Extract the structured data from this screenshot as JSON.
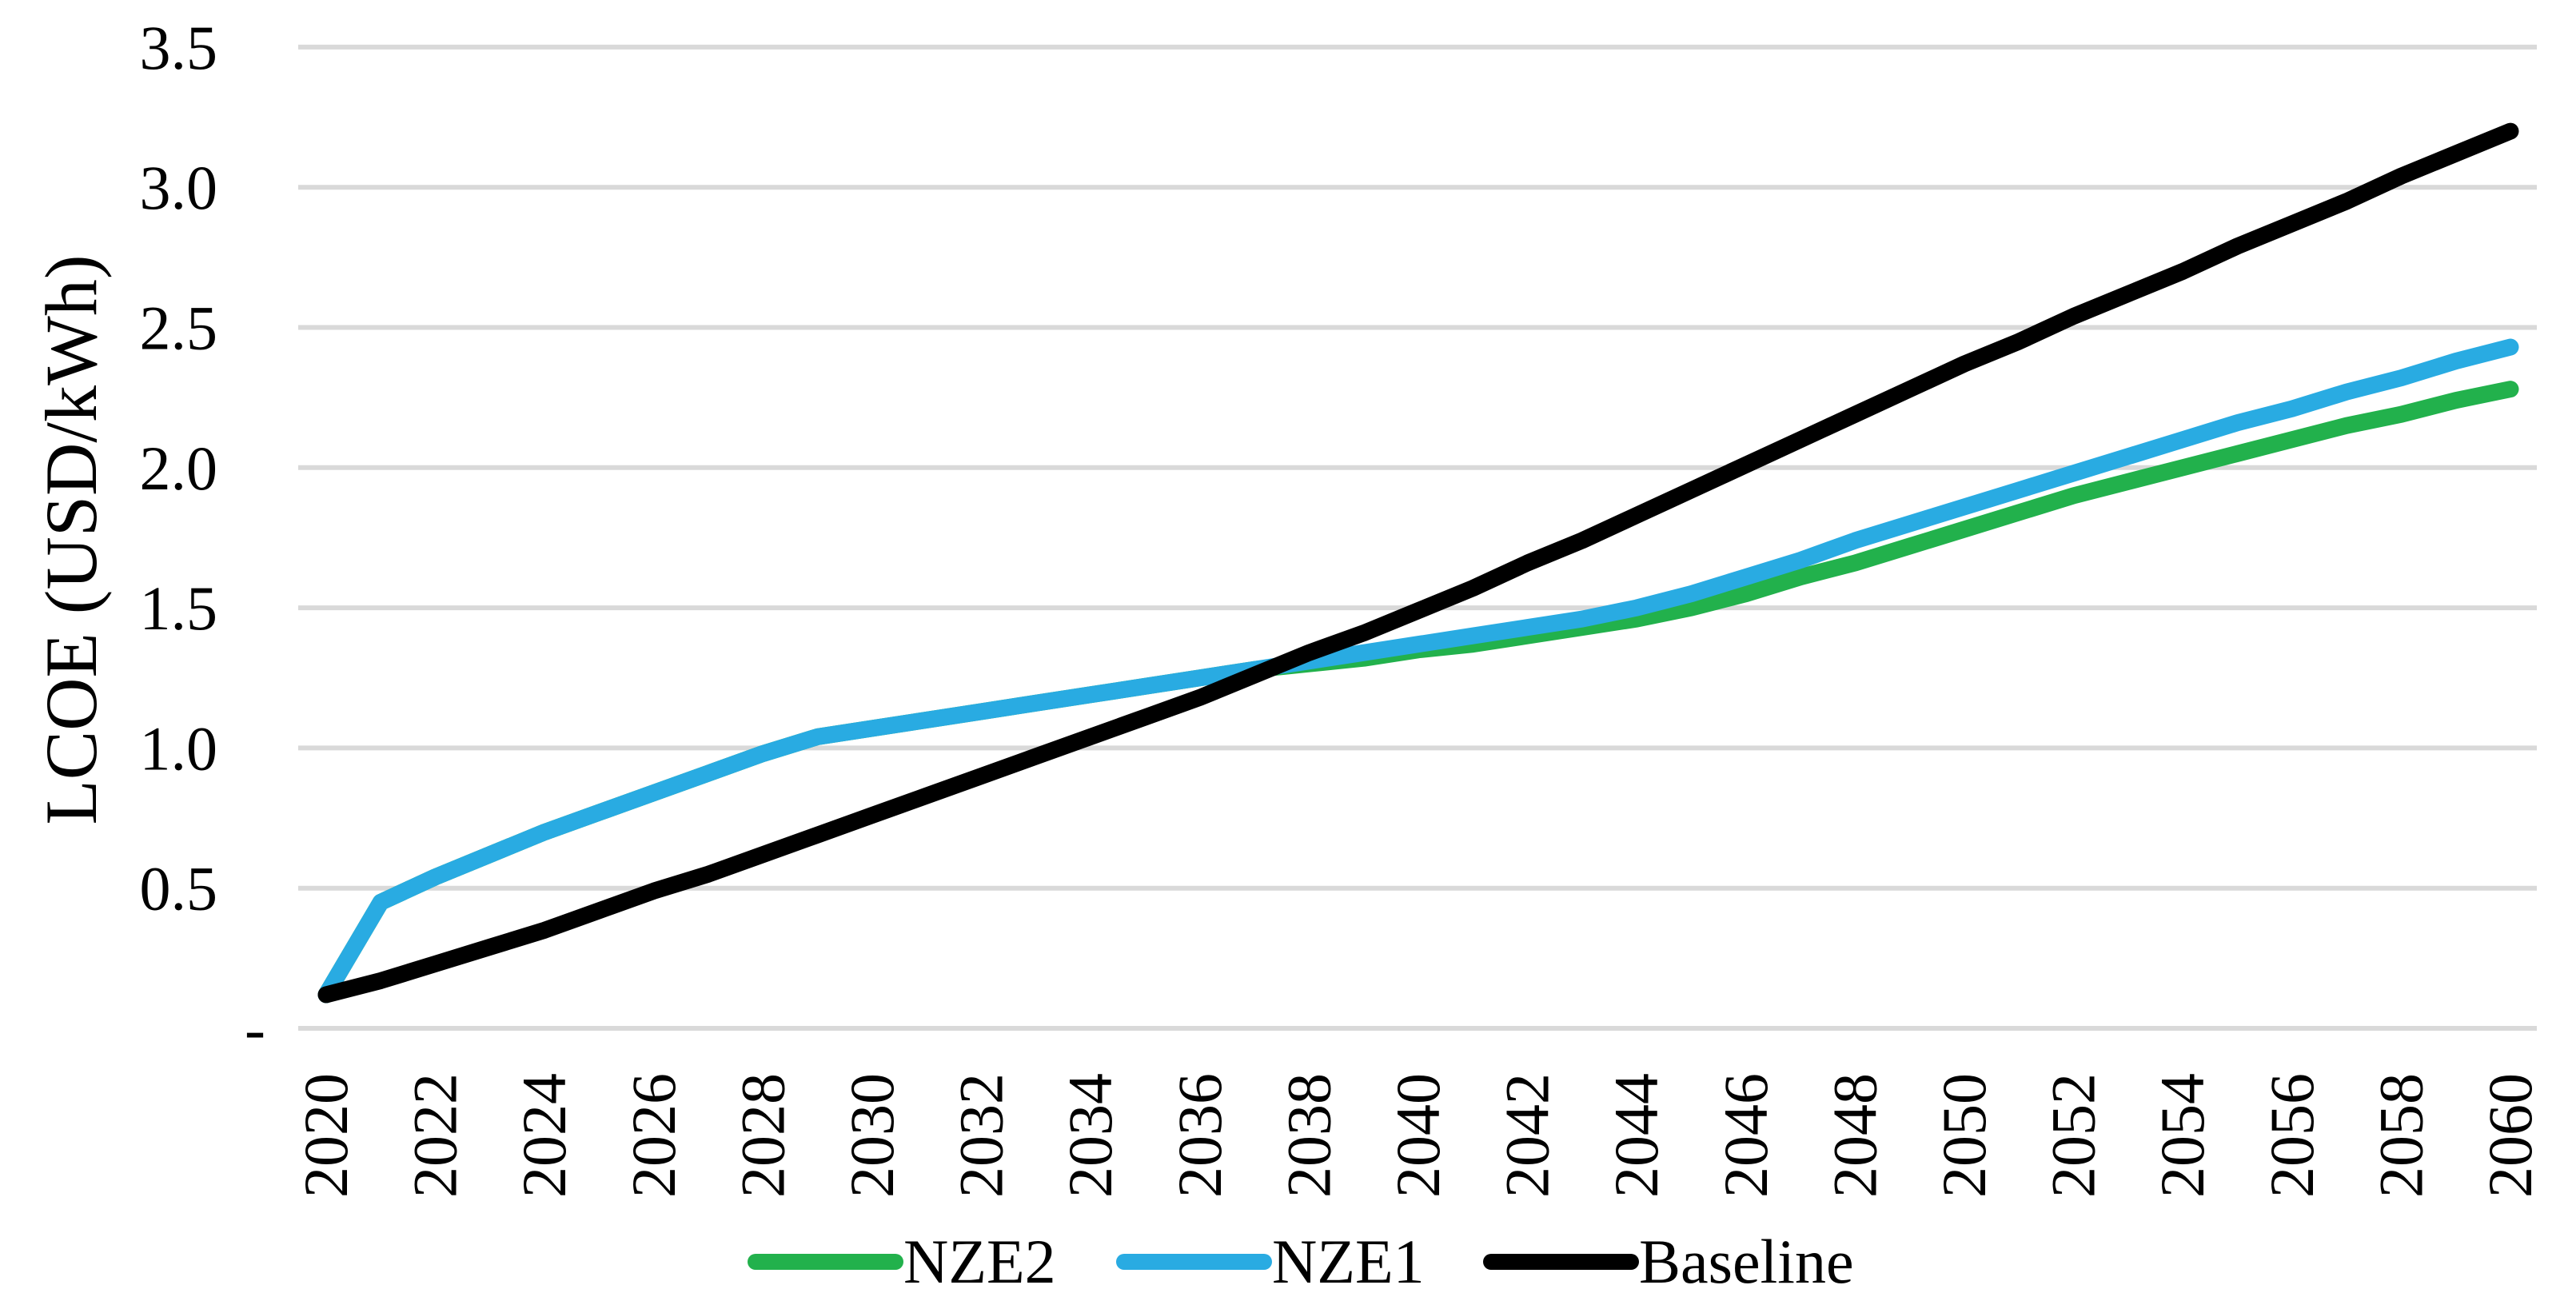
{
  "chart_data": {
    "type": "line",
    "title": "",
    "xlabel": "",
    "ylabel": "LCOE (USD/kWh)",
    "ylim": [
      0,
      3.5
    ],
    "ytick_step": 0.5,
    "yticks": [
      0,
      0.5,
      1.0,
      1.5,
      2.0,
      2.5,
      3.0,
      3.5
    ],
    "ytick_labels": [
      "-",
      "0.5",
      "1.0",
      "1.5",
      "2.0",
      "2.5",
      "3.0",
      "3.5"
    ],
    "x": [
      2020,
      2021,
      2022,
      2023,
      2024,
      2025,
      2026,
      2027,
      2028,
      2029,
      2030,
      2031,
      2032,
      2033,
      2034,
      2035,
      2036,
      2037,
      2038,
      2039,
      2040,
      2041,
      2042,
      2043,
      2044,
      2045,
      2046,
      2047,
      2048,
      2049,
      2050,
      2051,
      2052,
      2053,
      2054,
      2055,
      2056,
      2057,
      2058,
      2059,
      2060
    ],
    "xtick_years": [
      2020,
      2022,
      2024,
      2026,
      2028,
      2030,
      2032,
      2034,
      2036,
      2038,
      2040,
      2042,
      2044,
      2046,
      2048,
      2050,
      2052,
      2054,
      2056,
      2058,
      2060
    ],
    "grid": "horizontal",
    "legend_position": "bottom",
    "colors": {
      "grid": "#D9D9D9",
      "text": "#000000",
      "background": "#FFFFFF",
      "nze2": "#22B14C",
      "nze1": "#29ABE2",
      "baseline": "#000000"
    },
    "series": [
      {
        "name": "NZE2",
        "color": "#22B14C",
        "values": [
          0.12,
          0.45,
          0.54,
          0.62,
          0.7,
          0.77,
          0.84,
          0.91,
          0.98,
          1.04,
          1.07,
          1.1,
          1.13,
          1.16,
          1.19,
          1.22,
          1.25,
          1.28,
          1.3,
          1.32,
          1.35,
          1.37,
          1.4,
          1.43,
          1.46,
          1.5,
          1.55,
          1.61,
          1.66,
          1.72,
          1.78,
          1.84,
          1.9,
          1.95,
          2.0,
          2.05,
          2.1,
          2.15,
          2.19,
          2.24,
          2.28
        ]
      },
      {
        "name": "NZE1",
        "color": "#29ABE2",
        "values": [
          0.12,
          0.45,
          0.54,
          0.62,
          0.7,
          0.77,
          0.84,
          0.91,
          0.98,
          1.04,
          1.07,
          1.1,
          1.13,
          1.16,
          1.19,
          1.22,
          1.25,
          1.28,
          1.31,
          1.34,
          1.37,
          1.4,
          1.43,
          1.46,
          1.5,
          1.55,
          1.61,
          1.67,
          1.74,
          1.8,
          1.86,
          1.92,
          1.98,
          2.04,
          2.1,
          2.16,
          2.21,
          2.27,
          2.32,
          2.38,
          2.43
        ]
      },
      {
        "name": "Baseline",
        "color": "#000000",
        "values": [
          0.12,
          0.17,
          0.23,
          0.29,
          0.35,
          0.42,
          0.49,
          0.55,
          0.62,
          0.69,
          0.76,
          0.83,
          0.9,
          0.97,
          1.04,
          1.11,
          1.18,
          1.26,
          1.34,
          1.41,
          1.49,
          1.57,
          1.66,
          1.74,
          1.83,
          1.92,
          2.01,
          2.1,
          2.19,
          2.28,
          2.37,
          2.45,
          2.54,
          2.62,
          2.7,
          2.79,
          2.87,
          2.95,
          3.04,
          3.12,
          3.2
        ]
      }
    ],
    "legend": [
      "NZE2",
      "NZE1",
      "Baseline"
    ]
  }
}
